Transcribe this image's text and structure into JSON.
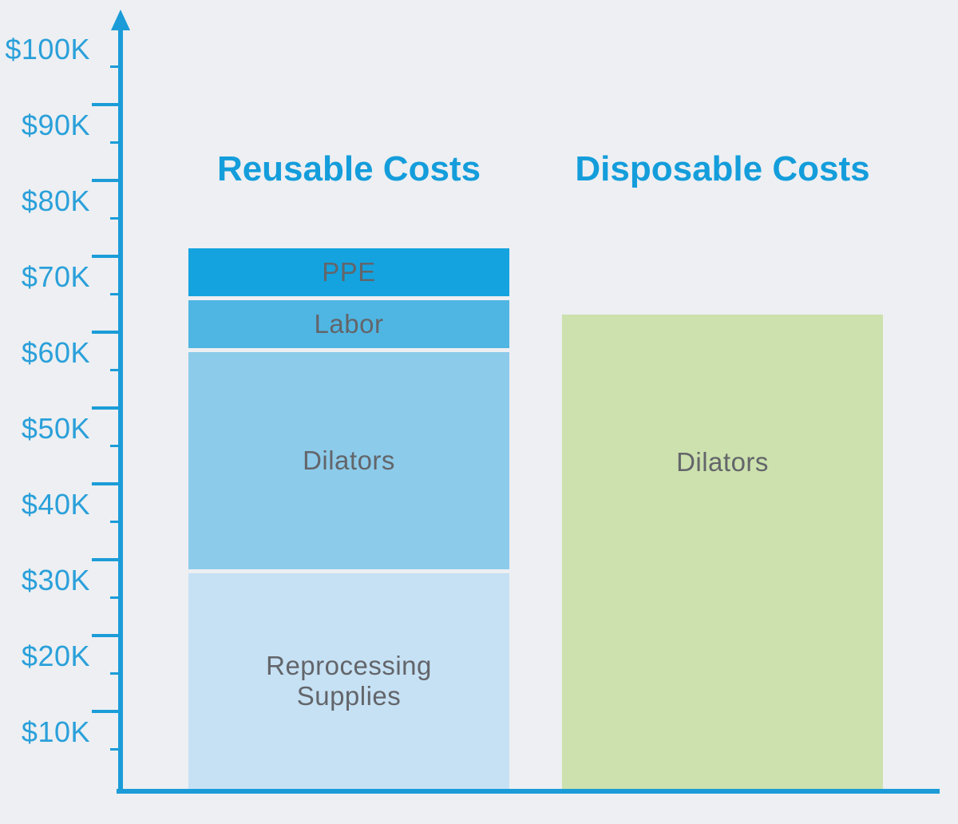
{
  "colors": {
    "background": "#EDEFF2",
    "axis": "#1B9CD8",
    "y_label_text": "#2AA0DA",
    "group_title_text": "#149DDB",
    "segment_label_text": "#63656A"
  },
  "chart_data": {
    "type": "bar",
    "stacked": true,
    "title": "",
    "xlabel": "",
    "ylabel": "",
    "unit": "USD (thousands)",
    "gridlines": false,
    "legend": "none",
    "yaxis": {
      "tick_labels": [
        "$100K",
        "$90K",
        "$80K",
        "$70K",
        "$60K",
        "$50K",
        "$40K",
        "$30K",
        "$20K",
        "$10K"
      ],
      "range_k": [
        0,
        100
      ],
      "tick_step_k": 10,
      "minor_ticks_at_labeled_values": true,
      "major_ticks_between_labeled_values": true,
      "arrow_at_top": true
    },
    "groups": [
      {
        "title": "Reusable Costs",
        "segments_top_to_bottom": [
          {
            "label": "PPE",
            "value_k": 6.3,
            "color": "#14A3DF"
          },
          {
            "label": "Labor",
            "value_k": 6.3,
            "color": "#4FB6E3"
          },
          {
            "label": "Dilators",
            "value_k": 28.6,
            "color": "#8CCBEA"
          },
          {
            "label": "Reprocessing Supplies",
            "value_k": 28.4,
            "color": "#C6E1F4"
          }
        ]
      },
      {
        "title": "Disposable Costs",
        "segments_top_to_bottom": [
          {
            "label": "Dilators",
            "value_k": 62.5,
            "color": "#CCE1AD"
          }
        ]
      }
    ]
  }
}
